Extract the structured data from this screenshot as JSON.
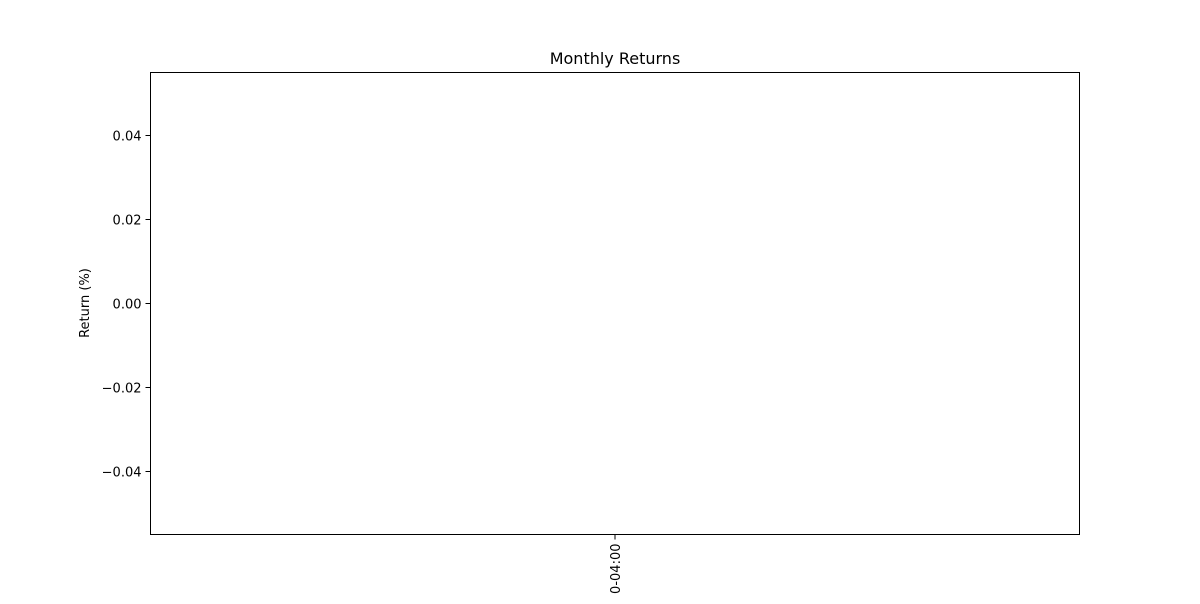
{
  "chart_data": {
    "type": "bar",
    "title": "Monthly Returns",
    "xlabel": "",
    "ylabel": "Return (%)",
    "categories": [
      "0-04:00"
    ],
    "values": [
      0
    ],
    "ylim": [
      -0.055,
      0.055
    ],
    "yticks": [
      0.04,
      0.02,
      0.0,
      -0.02,
      -0.04
    ],
    "ytick_labels": [
      "0.04",
      "0.02",
      "0.00",
      "−0.02",
      "−0.04"
    ],
    "xtick_labels": [
      "0-04:00"
    ],
    "xtick_rotation": "vertical",
    "grid": false,
    "legend": "none"
  }
}
